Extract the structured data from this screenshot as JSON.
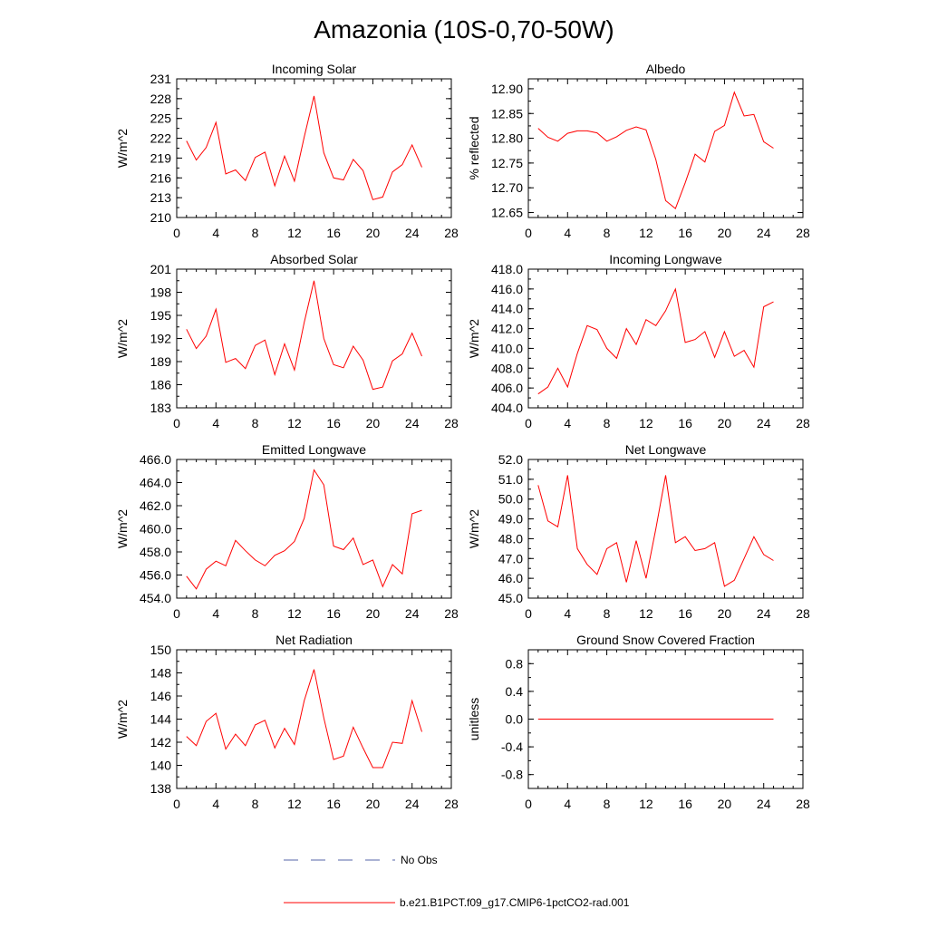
{
  "title": "Amazonia (10S-0,70-50W)",
  "legend": [
    {
      "label": "No Obs",
      "color": "#5566aa",
      "dash": true
    },
    {
      "label": "b.e21.B1PCT.f09_g17.CMIP6-1pctCO2-rad.001",
      "color": "#ff0000",
      "dash": false
    }
  ],
  "chart_data": [
    {
      "type": "line",
      "title": "Incoming Solar",
      "ylabel": "W/m^2",
      "xlim": [
        0,
        28
      ],
      "xticks": [
        0,
        4,
        8,
        12,
        16,
        20,
        24,
        28
      ],
      "ylim": [
        210,
        231
      ],
      "yticks": [
        210,
        213,
        216,
        219,
        222,
        225,
        228,
        231
      ],
      "ytick_labels": [
        "210",
        "213",
        "216",
        "219",
        "222",
        "225",
        "228",
        "231"
      ],
      "x": [
        1,
        2,
        3,
        4,
        5,
        6,
        7,
        8,
        9,
        10,
        11,
        12,
        13,
        14,
        15,
        16,
        17,
        18,
        19,
        20,
        21,
        22,
        23,
        24,
        25
      ],
      "series": [
        {
          "color": "#ff0000",
          "values": [
            221.6,
            218.7,
            220.6,
            224.4,
            216.6,
            217.2,
            215.6,
            219.1,
            219.9,
            214.8,
            219.3,
            215.5,
            222.2,
            228.4,
            219.8,
            216.0,
            215.7,
            218.8,
            217.1,
            212.7,
            213.1,
            216.9,
            218.0,
            221.0,
            217.6
          ]
        }
      ]
    },
    {
      "type": "line",
      "title": "Albedo",
      "ylabel": "% reflected",
      "xlim": [
        0,
        28
      ],
      "xticks": [
        0,
        4,
        8,
        12,
        16,
        20,
        24,
        28
      ],
      "ylim": [
        12.64,
        12.92
      ],
      "yticks": [
        12.65,
        12.7,
        12.75,
        12.8,
        12.85,
        12.9
      ],
      "ytick_labels": [
        "12.65",
        "12.70",
        "12.75",
        "12.80",
        "12.85",
        "12.90"
      ],
      "x": [
        1,
        2,
        3,
        4,
        5,
        6,
        7,
        8,
        9,
        10,
        11,
        12,
        13,
        14,
        15,
        16,
        17,
        18,
        19,
        20,
        21,
        22,
        23,
        24,
        25
      ],
      "series": [
        {
          "color": "#ff0000",
          "values": [
            12.82,
            12.802,
            12.794,
            12.81,
            12.815,
            12.815,
            12.811,
            12.794,
            12.803,
            12.816,
            12.823,
            12.817,
            12.757,
            12.674,
            12.658,
            12.71,
            12.768,
            12.752,
            12.814,
            12.826,
            12.893,
            12.845,
            12.848,
            12.793,
            12.78
          ]
        }
      ]
    },
    {
      "type": "line",
      "title": "Absorbed Solar",
      "ylabel": "W/m^2",
      "xlim": [
        0,
        28
      ],
      "xticks": [
        0,
        4,
        8,
        12,
        16,
        20,
        24,
        28
      ],
      "ylim": [
        183,
        201
      ],
      "yticks": [
        183,
        186,
        189,
        192,
        195,
        198,
        201
      ],
      "ytick_labels": [
        "183",
        "186",
        "189",
        "192",
        "195",
        "198",
        "201"
      ],
      "x": [
        1,
        2,
        3,
        4,
        5,
        6,
        7,
        8,
        9,
        10,
        11,
        12,
        13,
        14,
        15,
        16,
        17,
        18,
        19,
        20,
        21,
        22,
        23,
        24,
        25
      ],
      "series": [
        {
          "color": "#ff0000",
          "values": [
            193.2,
            190.7,
            192.3,
            195.8,
            188.9,
            189.4,
            188.1,
            191.1,
            191.8,
            187.3,
            191.3,
            187.9,
            194.1,
            199.5,
            192.0,
            188.6,
            188.2,
            191.0,
            189.2,
            185.4,
            185.7,
            189.1,
            190.0,
            192.7,
            189.7
          ]
        }
      ]
    },
    {
      "type": "line",
      "title": "Incoming Longwave",
      "ylabel": "W/m^2",
      "xlim": [
        0,
        28
      ],
      "xticks": [
        0,
        4,
        8,
        12,
        16,
        20,
        24,
        28
      ],
      "ylim": [
        404,
        418
      ],
      "yticks": [
        404,
        406,
        408,
        410,
        412,
        414,
        416,
        418
      ],
      "ytick_labels": [
        "404.0",
        "406.0",
        "408.0",
        "410.0",
        "412.0",
        "414.0",
        "416.0",
        "418.0"
      ],
      "x": [
        1,
        2,
        3,
        4,
        5,
        6,
        7,
        8,
        9,
        10,
        11,
        12,
        13,
        14,
        15,
        16,
        17,
        18,
        19,
        20,
        21,
        22,
        23,
        24,
        25
      ],
      "series": [
        {
          "color": "#ff0000",
          "values": [
            405.4,
            406.1,
            408.0,
            406.1,
            409.5,
            412.3,
            411.9,
            410.0,
            409.0,
            412.0,
            410.4,
            412.9,
            412.3,
            413.8,
            416.0,
            410.6,
            410.9,
            411.7,
            409.1,
            411.7,
            409.2,
            409.8,
            408.1,
            414.2,
            414.7
          ]
        }
      ]
    },
    {
      "type": "line",
      "title": "Emitted Longwave",
      "ylabel": "W/m^2",
      "xlim": [
        0,
        28
      ],
      "xticks": [
        0,
        4,
        8,
        12,
        16,
        20,
        24,
        28
      ],
      "ylim": [
        454,
        466
      ],
      "yticks": [
        454,
        456,
        458,
        460,
        462,
        464,
        466
      ],
      "ytick_labels": [
        "454.0",
        "456.0",
        "458.0",
        "460.0",
        "462.0",
        "464.0",
        "466.0"
      ],
      "x": [
        1,
        2,
        3,
        4,
        5,
        6,
        7,
        8,
        9,
        10,
        11,
        12,
        13,
        14,
        15,
        16,
        17,
        18,
        19,
        20,
        21,
        22,
        23,
        24,
        25
      ],
      "series": [
        {
          "color": "#ff0000",
          "values": [
            455.9,
            454.8,
            456.5,
            457.2,
            456.8,
            459.0,
            458.1,
            457.3,
            456.8,
            457.7,
            458.1,
            458.9,
            460.9,
            465.1,
            463.8,
            458.5,
            458.2,
            459.2,
            456.9,
            457.3,
            455.0,
            456.9,
            456.1,
            461.3,
            461.6
          ]
        }
      ]
    },
    {
      "type": "line",
      "title": "Net Longwave",
      "ylabel": "W/m^2",
      "xlim": [
        0,
        28
      ],
      "xticks": [
        0,
        4,
        8,
        12,
        16,
        20,
        24,
        28
      ],
      "ylim": [
        45,
        52
      ],
      "yticks": [
        45,
        46,
        47,
        48,
        49,
        50,
        51,
        52
      ],
      "ytick_labels": [
        "45.0",
        "46.0",
        "47.0",
        "48.0",
        "49.0",
        "50.0",
        "51.0",
        "52.0"
      ],
      "x": [
        1,
        2,
        3,
        4,
        5,
        6,
        7,
        8,
        9,
        10,
        11,
        12,
        13,
        14,
        15,
        16,
        17,
        18,
        19,
        20,
        21,
        22,
        23,
        24,
        25
      ],
      "series": [
        {
          "color": "#ff0000",
          "values": [
            50.7,
            48.9,
            48.6,
            51.2,
            47.5,
            46.7,
            46.2,
            47.5,
            47.8,
            45.8,
            47.9,
            46.0,
            48.5,
            51.2,
            47.8,
            48.1,
            47.4,
            47.5,
            47.8,
            45.6,
            45.9,
            47.0,
            48.1,
            47.2,
            46.9
          ]
        }
      ]
    },
    {
      "type": "line",
      "title": "Net Radiation",
      "ylabel": "W/m^2",
      "xlim": [
        0,
        28
      ],
      "xticks": [
        0,
        4,
        8,
        12,
        16,
        20,
        24,
        28
      ],
      "ylim": [
        138,
        150
      ],
      "yticks": [
        138,
        140,
        142,
        144,
        146,
        148,
        150
      ],
      "ytick_labels": [
        "138",
        "140",
        "142",
        "144",
        "146",
        "148",
        "150"
      ],
      "x": [
        1,
        2,
        3,
        4,
        5,
        6,
        7,
        8,
        9,
        10,
        11,
        12,
        13,
        14,
        15,
        16,
        17,
        18,
        19,
        20,
        21,
        22,
        23,
        24,
        25
      ],
      "series": [
        {
          "color": "#ff0000",
          "values": [
            142.5,
            141.7,
            143.8,
            144.5,
            141.4,
            142.7,
            141.7,
            143.5,
            143.9,
            141.5,
            143.2,
            141.8,
            145.6,
            148.3,
            144.1,
            140.5,
            140.8,
            143.3,
            141.5,
            139.8,
            139.8,
            142.0,
            141.9,
            145.6,
            142.9
          ]
        }
      ]
    },
    {
      "type": "line",
      "title": "Ground Snow Covered Fraction",
      "ylabel": "unitless",
      "xlim": [
        0,
        28
      ],
      "xticks": [
        0,
        4,
        8,
        12,
        16,
        20,
        24,
        28
      ],
      "ylim": [
        -1.0,
        1.0
      ],
      "yticks": [
        -0.8,
        -0.4,
        0.0,
        0.4,
        0.8
      ],
      "ytick_labels": [
        "-0.8",
        "-0.4",
        "0.0",
        "0.4",
        "0.8"
      ],
      "x": [
        1,
        2,
        3,
        4,
        5,
        6,
        7,
        8,
        9,
        10,
        11,
        12,
        13,
        14,
        15,
        16,
        17,
        18,
        19,
        20,
        21,
        22,
        23,
        24,
        25
      ],
      "series": [
        {
          "color": "#ff0000",
          "values": [
            0,
            0,
            0,
            0,
            0,
            0,
            0,
            0,
            0,
            0,
            0,
            0,
            0,
            0,
            0,
            0,
            0,
            0,
            0,
            0,
            0,
            0,
            0,
            0,
            0
          ]
        }
      ]
    }
  ]
}
